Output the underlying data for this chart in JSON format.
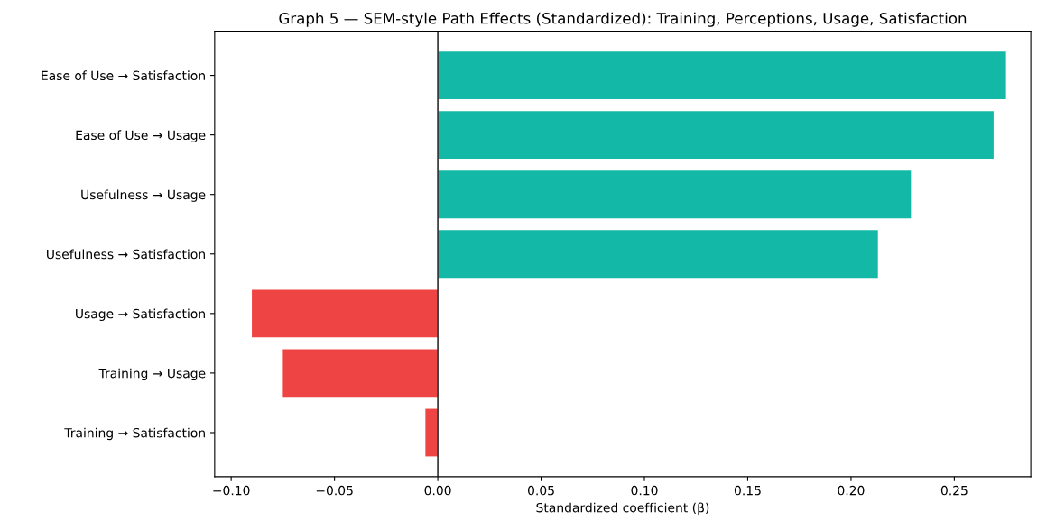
{
  "chart_data": {
    "type": "bar",
    "orientation": "horizontal",
    "title": "Graph 5 — SEM-style Path Effects (Standardized): Training, Perceptions, Usage, Satisfaction",
    "xlabel": "Standardized coefficient (β)",
    "categories": [
      "Ease of Use → Satisfaction",
      "Ease of Use → Usage",
      "Usefulness → Usage",
      "Usefulness → Satisfaction",
      "Usage → Satisfaction",
      "Training → Usage",
      "Training → Satisfaction"
    ],
    "values": [
      0.275,
      0.269,
      0.229,
      0.213,
      -0.09,
      -0.075,
      -0.006
    ],
    "colors": [
      "#14b8a6",
      "#14b8a6",
      "#14b8a6",
      "#14b8a6",
      "#ef4444",
      "#ef4444",
      "#ef4444"
    ],
    "xlim": [
      -0.108,
      0.287
    ],
    "xticks": [
      {
        "value": -0.1,
        "label": "−0.10"
      },
      {
        "value": -0.05,
        "label": "−0.05"
      },
      {
        "value": 0,
        "label": "0.00"
      },
      {
        "value": 0.05,
        "label": "0.05"
      },
      {
        "value": 0.1,
        "label": "0.10"
      },
      {
        "value": 0.15,
        "label": "0.15"
      },
      {
        "value": 0.2,
        "label": "0.20"
      },
      {
        "value": 0.25,
        "label": "0.25"
      }
    ],
    "ref_lines": [
      {
        "axis": "x",
        "value": 0,
        "color": "#333333"
      }
    ],
    "grid": false
  }
}
